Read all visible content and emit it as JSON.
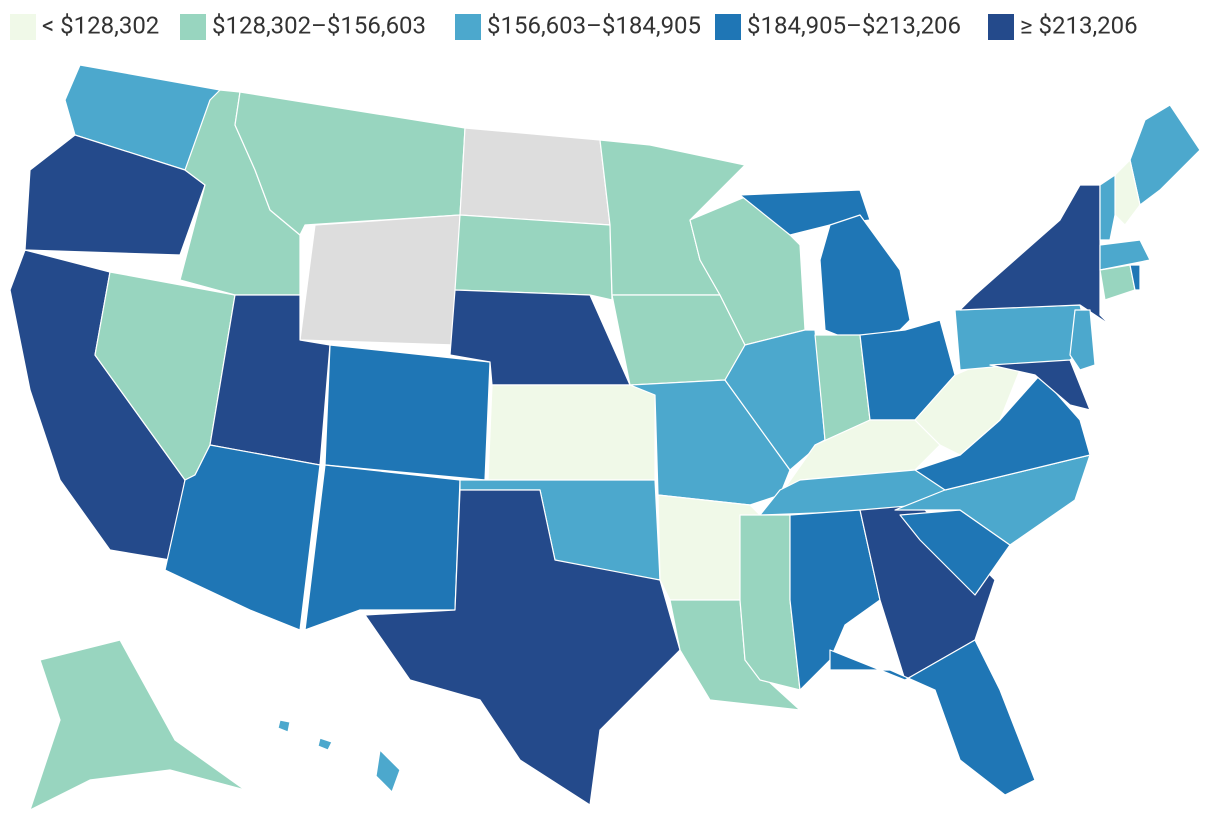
{
  "legend": {
    "items": [
      {
        "label": "< $128,302",
        "color": "#f0f9e8"
      },
      {
        "label": "$128,302–$156,603",
        "color": "#98d5bf"
      },
      {
        "label": "$156,603–$184,905",
        "color": "#4ca8cd"
      },
      {
        "label": "$184,905–$213,206",
        "color": "#1f76b5"
      },
      {
        "label": "≥ $213,206",
        "color": "#244a8b"
      }
    ]
  }
}
